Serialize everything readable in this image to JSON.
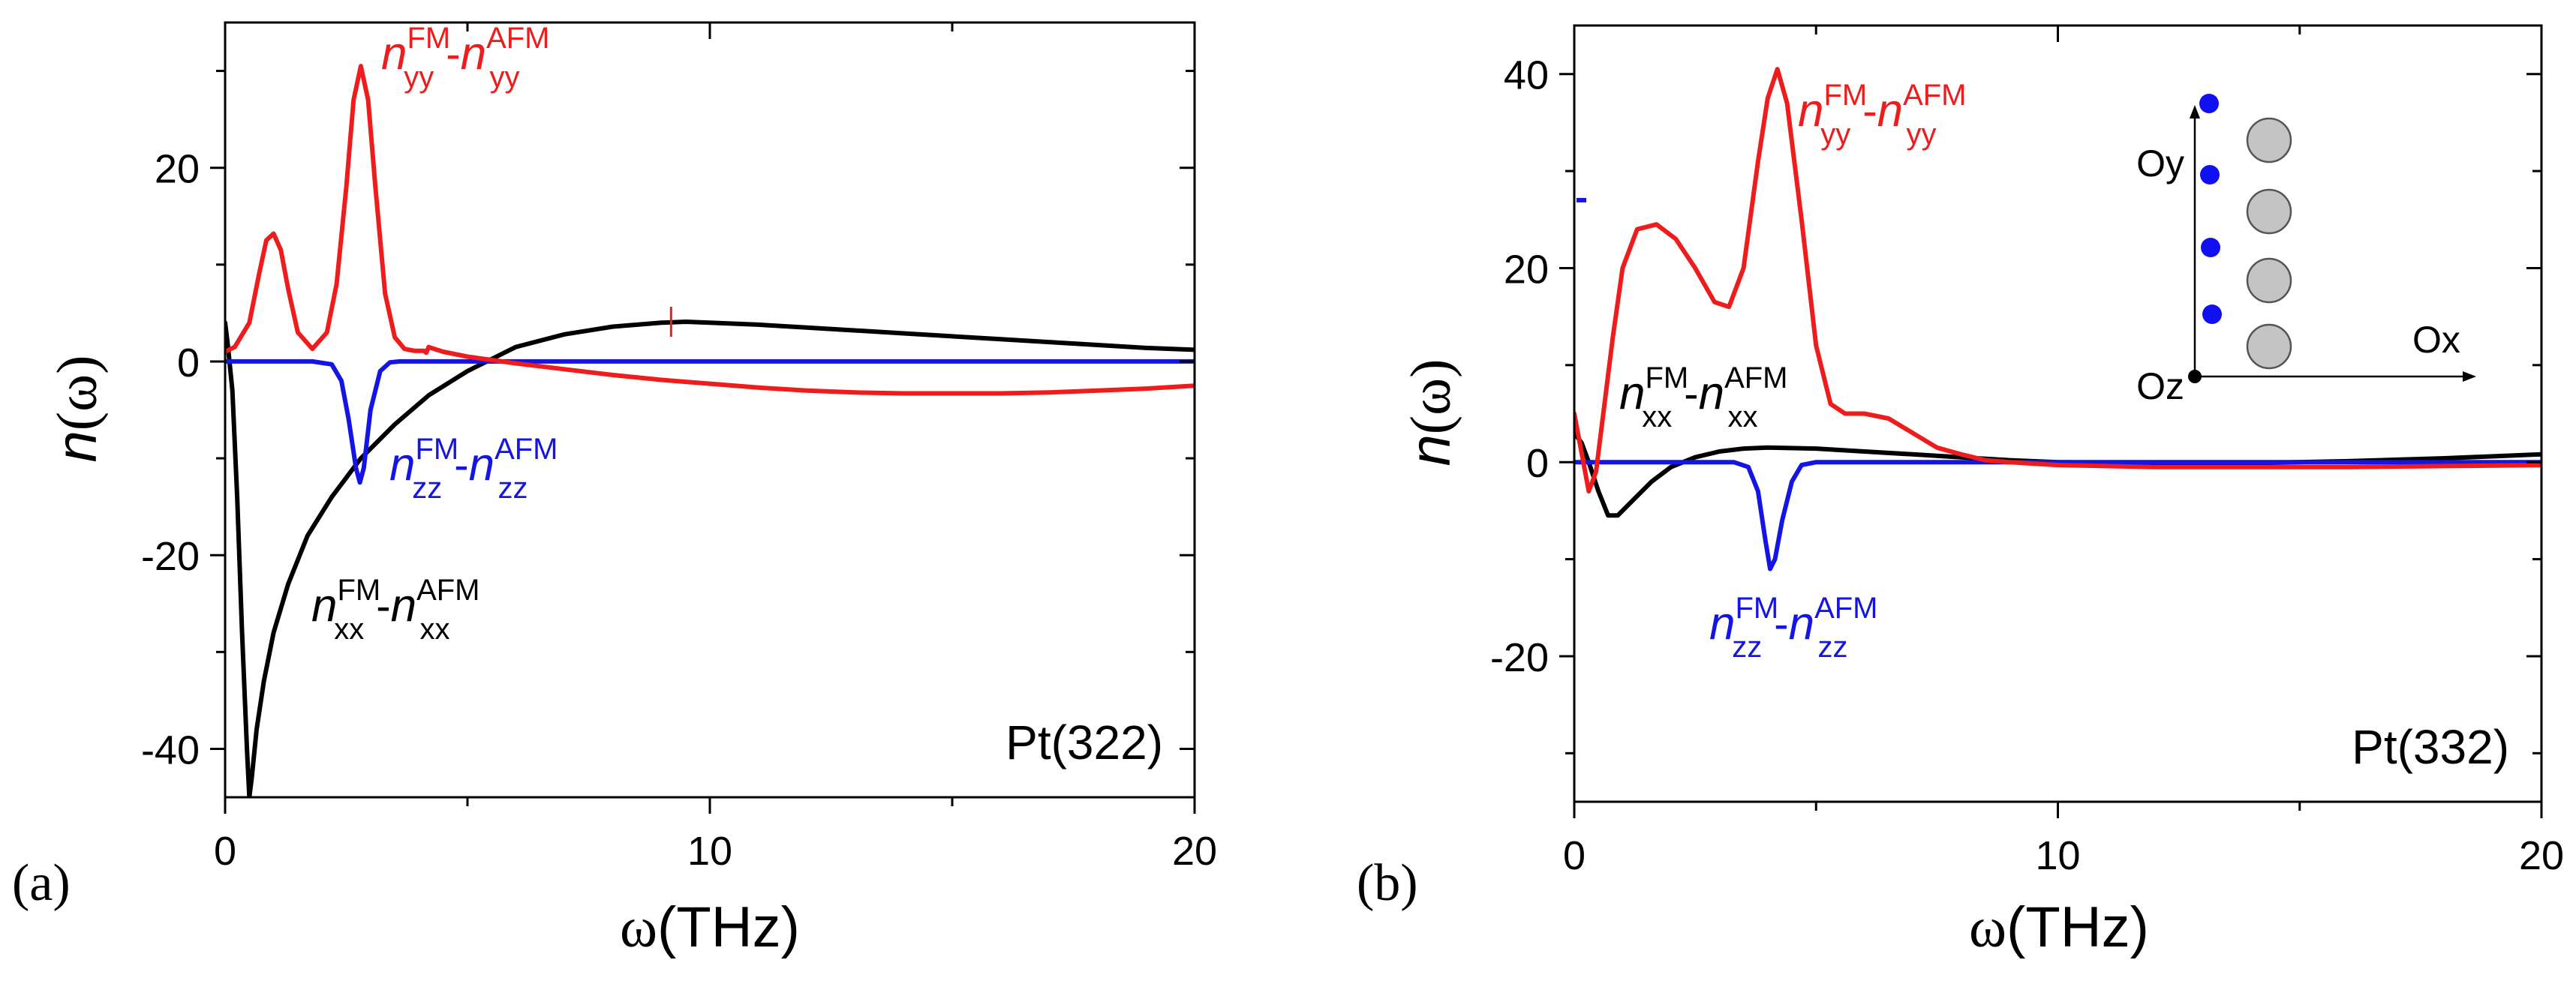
{
  "colors": {
    "black": "#000000",
    "red": "#ee1c1c",
    "blue": "#1414e6",
    "atom_blue": "#1010f0",
    "atom_gray": "#c4c4c4"
  },
  "chart_data": [
    {
      "type": "line",
      "panel_label": "(a)",
      "sample_label": "Pt(322)",
      "xlabel": {
        "symbol": "ω",
        "unit": "(THz)"
      },
      "ylabel": {
        "symbol": "n",
        "arg": "(ω)"
      },
      "xlim": [
        0,
        20
      ],
      "ylim": [
        -45,
        35
      ],
      "xticks": [
        0,
        10,
        20
      ],
      "xminor": [
        5,
        15
      ],
      "yticks": [
        -40,
        -20,
        0,
        20
      ],
      "yminor": [
        -30,
        -10,
        10,
        30
      ],
      "yticklabels": [
        "-40",
        "-20",
        "0",
        "20"
      ],
      "series": [
        {
          "name": "xx",
          "color": "black",
          "x": [
            0.0,
            0.05,
            0.15,
            0.25,
            0.35,
            0.45,
            0.5,
            0.55,
            0.65,
            0.8,
            1.0,
            1.3,
            1.7,
            2.2,
            2.8,
            3.5,
            4.2,
            5.0,
            6.0,
            7.0,
            8.0,
            9.0,
            9.5,
            10,
            11,
            12,
            13,
            14,
            15,
            16,
            17,
            18,
            19,
            20
          ],
          "y": [
            4,
            2,
            -3,
            -14,
            -28,
            -40,
            -45,
            -43,
            -38,
            -33,
            -28,
            -23,
            -18,
            -14,
            -10,
            -6.5,
            -3.5,
            -1,
            1.5,
            2.8,
            3.6,
            4.0,
            4.1,
            4.0,
            3.8,
            3.5,
            3.2,
            2.9,
            2.6,
            2.3,
            2.0,
            1.7,
            1.4,
            1.2
          ]
        },
        {
          "name": "yy",
          "color": "red",
          "x": [
            0,
            0.2,
            0.5,
            0.7,
            0.85,
            1.0,
            1.15,
            1.3,
            1.5,
            1.8,
            2.1,
            2.3,
            2.5,
            2.65,
            2.8,
            2.95,
            3.1,
            3.3,
            3.5,
            3.7,
            3.9,
            4.1,
            4.15,
            4.2,
            4.25,
            4.5,
            5.0,
            6.0,
            7.0,
            8.0,
            9.0,
            10,
            11,
            12,
            13,
            14,
            15,
            16,
            17,
            18,
            19,
            20
          ],
          "y": [
            1,
            1.5,
            4,
            9,
            12.5,
            13.2,
            11.5,
            7.5,
            3,
            1.3,
            3,
            8,
            18,
            27,
            30.5,
            27,
            18,
            7,
            2.5,
            1.3,
            1.1,
            1.1,
            0.9,
            1.5,
            1.4,
            1.0,
            0.5,
            -0.2,
            -0.8,
            -1.4,
            -1.9,
            -2.3,
            -2.7,
            -3.0,
            -3.2,
            -3.3,
            -3.3,
            -3.3,
            -3.2,
            -3.0,
            -2.8,
            -2.5
          ]
        },
        {
          "name": "zz",
          "color": "blue",
          "x": [
            0,
            1.8,
            2.2,
            2.4,
            2.55,
            2.7,
            2.78,
            2.86,
            3.0,
            3.2,
            3.4,
            3.6,
            20
          ],
          "y": [
            0,
            0,
            -0.3,
            -2,
            -6,
            -11,
            -12.5,
            -11,
            -5,
            -1,
            -0.1,
            0,
            0
          ]
        }
      ],
      "annotations": [
        {
          "series": "yy",
          "main": "n",
          "sub": "yy",
          "sup": "FM",
          "sep": "-",
          "main2": "n",
          "sub2": "yy",
          "sup2": "AFM"
        },
        {
          "series": "zz",
          "main": "n",
          "sub": "zz",
          "sup": "FM",
          "sep": "-",
          "main2": "n",
          "sub2": "zz",
          "sup2": "AFM"
        },
        {
          "series": "xx",
          "main": "n",
          "sub": "xx",
          "sup": "FM",
          "sep": "-",
          "main2": "n",
          "sub2": "xx",
          "sup2": "AFM"
        }
      ]
    },
    {
      "type": "line",
      "panel_label": "(b)",
      "sample_label": "Pt(332)",
      "xlabel": {
        "symbol": "ω",
        "unit": "(THz)"
      },
      "ylabel": {
        "symbol": "n",
        "arg": "(ω)"
      },
      "xlim": [
        0,
        20
      ],
      "ylim": [
        -35,
        45
      ],
      "xticks": [
        0,
        10,
        20
      ],
      "xminor": [
        5,
        15
      ],
      "yticks": [
        -20,
        0,
        20,
        40
      ],
      "yminor": [
        -30,
        -10,
        10,
        30
      ],
      "yticklabels": [
        "-20",
        "0",
        "20",
        "40"
      ],
      "series": [
        {
          "name": "xx",
          "color": "black",
          "x": [
            0,
            0.15,
            0.3,
            0.5,
            0.7,
            0.9,
            1.2,
            1.6,
            2.0,
            2.5,
            3.0,
            3.5,
            4.0,
            5.0,
            6.0,
            7.0,
            8.0,
            9.0,
            10,
            12,
            14,
            16,
            18,
            20
          ],
          "y": [
            3,
            2,
            0,
            -3,
            -5.5,
            -5.5,
            -4,
            -2,
            -0.5,
            0.5,
            1.1,
            1.4,
            1.5,
            1.4,
            1.1,
            0.8,
            0.5,
            0.2,
            0.0,
            -0.1,
            -0.1,
            0.1,
            0.4,
            0.8
          ]
        },
        {
          "name": "yy",
          "color": "red",
          "x": [
            0,
            0.15,
            0.3,
            0.45,
            0.6,
            0.8,
            1.0,
            1.3,
            1.7,
            2.1,
            2.5,
            2.9,
            3.2,
            3.5,
            3.8,
            4.0,
            4.2,
            4.4,
            4.7,
            5.0,
            5.3,
            5.6,
            6.0,
            6.5,
            7.0,
            7.5,
            8.0,
            8.5,
            9.0,
            10,
            12,
            14,
            16,
            18,
            20
          ],
          "y": [
            5,
            1,
            -3,
            -1,
            5,
            13,
            20,
            24,
            24.5,
            23,
            20,
            16.5,
            16,
            20,
            31,
            37.5,
            40.5,
            37,
            25,
            12,
            6,
            5,
            5,
            4.5,
            3,
            1.5,
            0.8,
            0.2,
            0,
            -0.3,
            -0.5,
            -0.5,
            -0.5,
            -0.4,
            -0.3
          ]
        },
        {
          "name": "zz",
          "color": "blue",
          "x": [
            0,
            3.3,
            3.6,
            3.8,
            3.95,
            4.05,
            4.15,
            4.3,
            4.5,
            4.7,
            5.0,
            20
          ],
          "y": [
            0,
            0,
            -0.5,
            -3,
            -8,
            -11,
            -10,
            -6,
            -2,
            -0.3,
            0,
            0
          ]
        }
      ],
      "annotations": [
        {
          "series": "yy",
          "main": "n",
          "sub": "yy",
          "sup": "FM",
          "sep": "-",
          "main2": "n",
          "sub2": "yy",
          "sup2": "AFM"
        },
        {
          "series": "xx",
          "main": "n",
          "sub": "xx",
          "sup": "FM",
          "sep": "-",
          "main2": "n",
          "sub2": "xx",
          "sup2": "AFM"
        },
        {
          "series": "zz",
          "main": "n",
          "sub": "zz",
          "sup": "FM",
          "sep": "-",
          "main2": "n",
          "sub2": "zz",
          "sup2": "AFM"
        }
      ],
      "inset": {
        "y_axis_label": "Oy",
        "x_axis_label": "Ox",
        "origin_label": "Oz",
        "blue_atoms": 4,
        "gray_atoms": 4
      }
    }
  ]
}
